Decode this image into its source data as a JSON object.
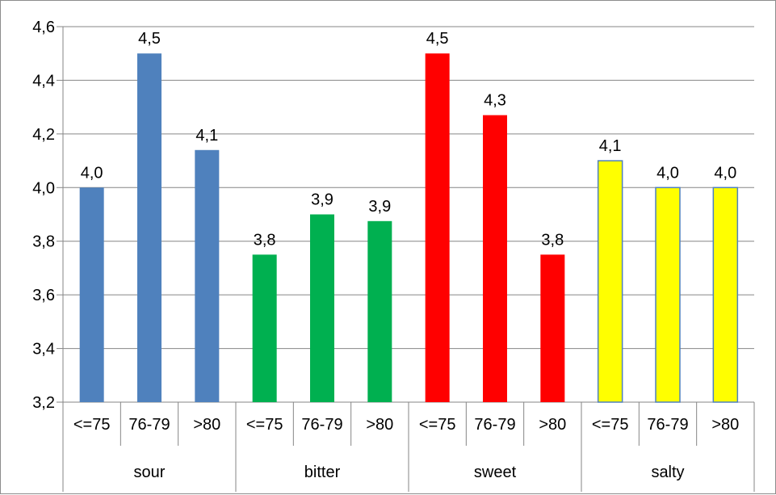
{
  "chart_data": {
    "type": "bar",
    "title": "",
    "xlabel": "",
    "ylabel": "",
    "ylim": [
      3.2,
      4.6
    ],
    "yticks": [
      3.2,
      3.4,
      3.6,
      3.8,
      4.0,
      4.2,
      4.4,
      4.6
    ],
    "ytick_labels": [
      "3,2",
      "3,4",
      "3,6",
      "3,8",
      "4,0",
      "4,2",
      "4,4",
      "4,6"
    ],
    "grid": true,
    "legend": "none",
    "sub_categories": [
      "<=75",
      "76-79",
      ">80"
    ],
    "groups": [
      {
        "name": "sour",
        "color": "#4F81BD",
        "values": [
          4.0,
          4.5,
          4.14
        ],
        "labels": [
          "4,0",
          "4,5",
          "4,1"
        ]
      },
      {
        "name": "bitter",
        "color": "#00B050",
        "values": [
          3.75,
          3.9,
          3.875
        ],
        "labels": [
          "3,8",
          "3,9",
          "3,9"
        ]
      },
      {
        "name": "sweet",
        "color": "#FF0000",
        "values": [
          4.5,
          4.27,
          3.75
        ],
        "labels": [
          "4,5",
          "4,3",
          "3,8"
        ]
      },
      {
        "name": "salty",
        "color": "#FFFF00",
        "values": [
          4.1,
          4.0,
          4.0
        ],
        "labels": [
          "4,1",
          "4,0",
          "4,0"
        ]
      }
    ],
    "bar_outline_color": "#4F81BD"
  }
}
